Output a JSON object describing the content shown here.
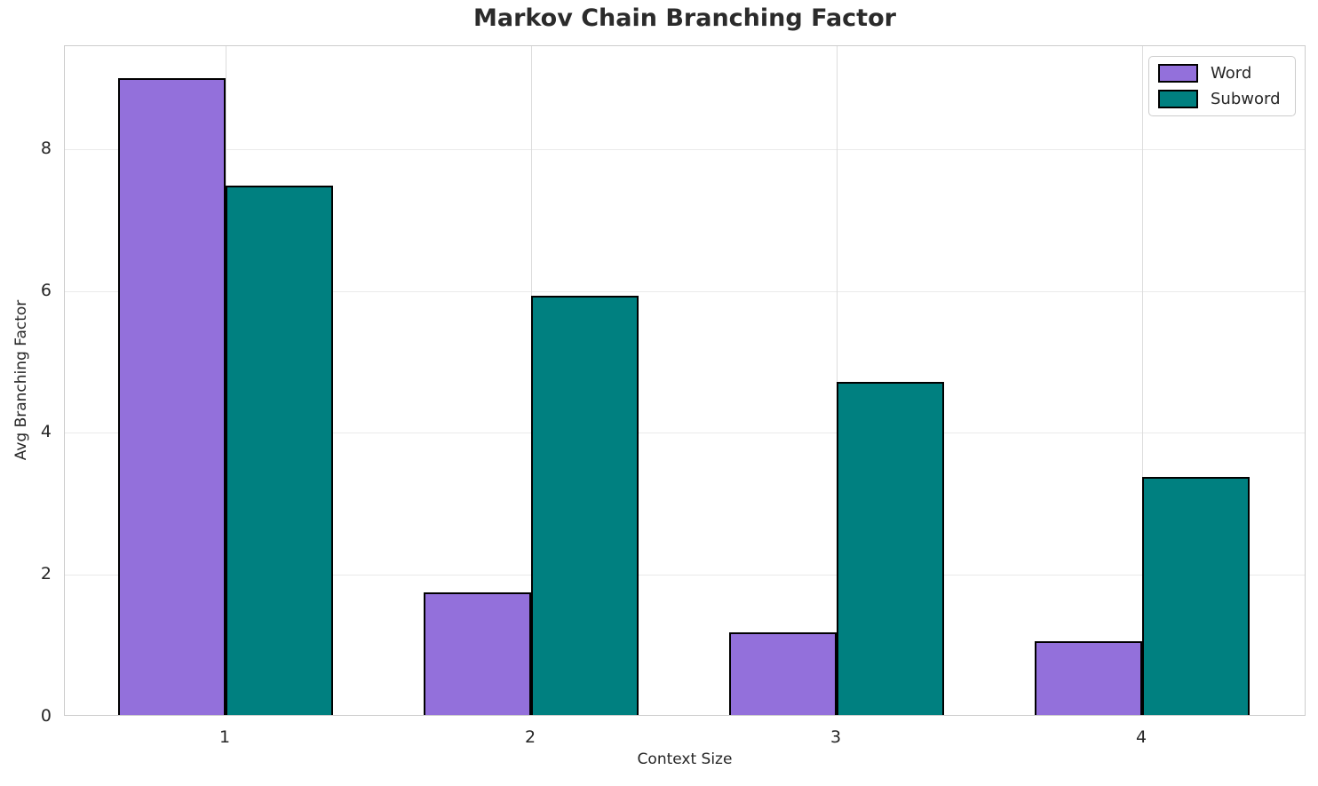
{
  "chart_data": {
    "type": "bar",
    "title": "Markov Chain Branching Factor",
    "xlabel": "Context Size",
    "ylabel": "Avg Branching Factor",
    "categories": [
      "1",
      "2",
      "3",
      "4"
    ],
    "series": [
      {
        "name": "Word",
        "color": "#9370DB",
        "values": [
          8.98,
          1.73,
          1.16,
          1.04
        ]
      },
      {
        "name": "Subword",
        "color": "#008080",
        "values": [
          7.46,
          5.91,
          4.7,
          3.36
        ]
      }
    ],
    "bar_edge_color": "#000000",
    "yticks": [
      0,
      2,
      4,
      6,
      8
    ],
    "ylim": [
      0,
      9.45
    ],
    "grid": true,
    "grid_color": "#eaeaea",
    "spine_color": "#cccccc",
    "legend_position": "upper right",
    "text_color": "#262626"
  }
}
